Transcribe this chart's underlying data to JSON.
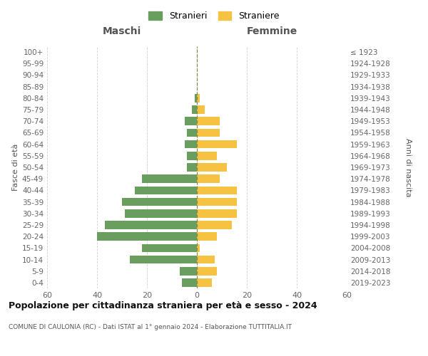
{
  "age_groups": [
    "0-4",
    "5-9",
    "10-14",
    "15-19",
    "20-24",
    "25-29",
    "30-34",
    "35-39",
    "40-44",
    "45-49",
    "50-54",
    "55-59",
    "60-64",
    "65-69",
    "70-74",
    "75-79",
    "80-84",
    "85-89",
    "90-94",
    "95-99",
    "100+"
  ],
  "birth_years": [
    "2019-2023",
    "2014-2018",
    "2009-2013",
    "2004-2008",
    "1999-2003",
    "1994-1998",
    "1989-1993",
    "1984-1988",
    "1979-1983",
    "1974-1978",
    "1969-1973",
    "1964-1968",
    "1959-1963",
    "1954-1958",
    "1949-1953",
    "1944-1948",
    "1939-1943",
    "1934-1938",
    "1929-1933",
    "1924-1928",
    "≤ 1923"
  ],
  "maschi": [
    6,
    7,
    27,
    22,
    40,
    37,
    29,
    30,
    25,
    22,
    4,
    4,
    5,
    4,
    5,
    2,
    1,
    0,
    0,
    0,
    0
  ],
  "femmine": [
    6,
    8,
    7,
    1,
    8,
    14,
    16,
    16,
    16,
    9,
    12,
    8,
    16,
    9,
    9,
    3,
    1,
    0,
    0,
    0,
    0
  ],
  "color_maschi": "#6a9e5e",
  "color_femmine": "#f5c242",
  "title": "Popolazione per cittadinanza straniera per età e sesso - 2024",
  "subtitle": "COMUNE DI CAULONIA (RC) - Dati ISTAT al 1° gennaio 2024 - Elaborazione TUTTITALIA.IT",
  "label_maschi": "Maschi",
  "label_femmine": "Femmine",
  "ylabel_left": "Fasce di età",
  "ylabel_right": "Anni di nascita",
  "legend_maschi": "Stranieri",
  "legend_femmine": "Straniere",
  "xlim": 60,
  "bg_color": "#ffffff",
  "grid_color": "#d0d0d0",
  "center_line_color": "#888855"
}
